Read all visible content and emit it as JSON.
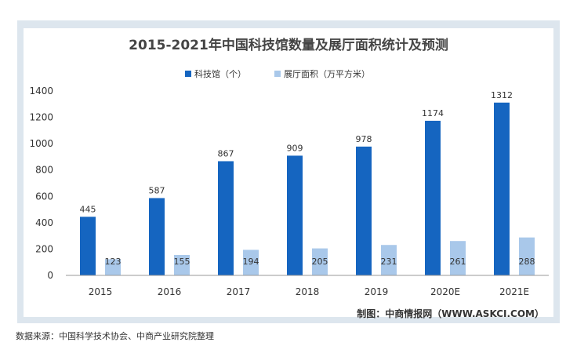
{
  "chart_data": {
    "type": "bar",
    "title": "2015-2021年中国科技馆数量及展厅面积统计及预测",
    "categories": [
      "2015",
      "2016",
      "2017",
      "2018",
      "2019",
      "2020E",
      "2021E"
    ],
    "series": [
      {
        "name": "科技馆（个）",
        "values": [
          445,
          587,
          867,
          909,
          978,
          1174,
          1312
        ],
        "color": "#1565c0"
      },
      {
        "name": "展厅面积（万平方米）",
        "values": [
          123,
          155,
          194,
          205,
          231,
          261,
          288
        ],
        "color": "#a9c8ea"
      }
    ],
    "ylim": [
      0,
      1400
    ],
    "yticks": [
      0,
      200,
      400,
      600,
      800,
      1000,
      1200,
      1400
    ],
    "ytick_labels": [
      "0",
      "200",
      "400",
      "600",
      "800",
      "1000",
      "1200",
      "1400"
    ],
    "xlabel": "",
    "ylabel": "",
    "grid": false,
    "legend_position": "top-center",
    "data_labels": true
  },
  "credit": "制图：中商情报网（WWW.ASKCI.COM）",
  "source_note": "数据来源：中国科学技术协会、中商产业研究院整理",
  "colors": {
    "frame_bg": "#dde6ee",
    "plot_bg": "#ffffff",
    "axis": "#999999",
    "text": "#333333"
  }
}
